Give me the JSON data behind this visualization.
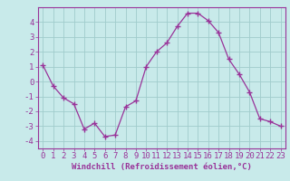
{
  "x": [
    0,
    1,
    2,
    3,
    4,
    5,
    6,
    7,
    8,
    9,
    10,
    11,
    12,
    13,
    14,
    15,
    16,
    17,
    18,
    19,
    20,
    21,
    22,
    23
  ],
  "y": [
    1.1,
    -0.3,
    -1.1,
    -1.5,
    -3.2,
    -2.8,
    -3.7,
    -3.6,
    -1.7,
    -1.3,
    1.0,
    2.0,
    2.6,
    3.7,
    4.6,
    4.6,
    4.1,
    3.3,
    1.5,
    0.5,
    -0.7,
    -2.5,
    -2.7,
    -3.0
  ],
  "line_color": "#993399",
  "marker": "+",
  "bg_color": "#c8eaea",
  "grid_color": "#a0cccc",
  "xlabel": "Windchill (Refroidissement éolien,°C)",
  "xlabel_color": "#993399",
  "ylim": [
    -4.5,
    5.0
  ],
  "yticks": [
    -4,
    -3,
    -2,
    -1,
    0,
    1,
    2,
    3,
    4
  ],
  "xlim": [
    -0.5,
    23.5
  ],
  "xticks": [
    0,
    1,
    2,
    3,
    4,
    5,
    6,
    7,
    8,
    9,
    10,
    11,
    12,
    13,
    14,
    15,
    16,
    17,
    18,
    19,
    20,
    21,
    22,
    23
  ],
  "tick_color": "#993399",
  "spine_color": "#993399",
  "font_size_label": 6.5,
  "font_size_tick": 6.5
}
